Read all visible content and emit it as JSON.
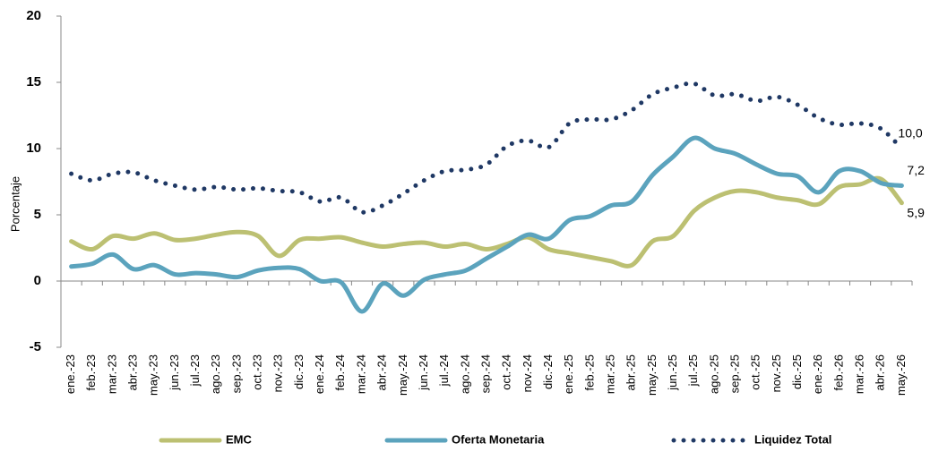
{
  "chart_data": {
    "type": "line",
    "y_label": "Porcentaje",
    "categories": [
      "ene.-23",
      "feb.-23",
      "mar.-23",
      "abr.-23",
      "may.-23",
      "jun.-23",
      "jul.-23",
      "ago.-23",
      "sep.-23",
      "oct.-23",
      "nov.-23",
      "dic.-23",
      "ene.-24",
      "feb.-24",
      "mar.-24",
      "abr.-24",
      "may.-24",
      "jun.-24",
      "jul.-24",
      "ago.-24",
      "sep.-24",
      "oct.-24",
      "nov.-24",
      "dic.-24",
      "ene.-25",
      "feb.-25",
      "mar.-25",
      "abr.-25",
      "may.-25",
      "jun.-25",
      "jul.-25",
      "ago.-25",
      "sep.-25",
      "oct.-25",
      "nov.-25",
      "dic.-25",
      "ene.-26",
      "feb.-26",
      "mar.-26",
      "abr.-26",
      "may.-26"
    ],
    "series": [
      {
        "name": "EMC",
        "color": "#bcc072",
        "style": "solid",
        "values": [
          3.0,
          2.4,
          3.4,
          3.2,
          3.6,
          3.1,
          3.2,
          3.5,
          3.7,
          3.4,
          1.9,
          3.1,
          3.2,
          3.3,
          2.9,
          2.6,
          2.8,
          2.9,
          2.6,
          2.8,
          2.4,
          2.8,
          3.3,
          2.4,
          2.1,
          1.8,
          1.5,
          1.2,
          3.0,
          3.4,
          5.3,
          6.3,
          6.8,
          6.7,
          6.3,
          6.1,
          5.8,
          7.1,
          7.3,
          7.7,
          5.9
        ],
        "value_labels": [
          null,
          null,
          null,
          null,
          null,
          null,
          null,
          null,
          null,
          null,
          null,
          null,
          null,
          null,
          null,
          null,
          null,
          null,
          null,
          null,
          null,
          null,
          null,
          null,
          null,
          null,
          null,
          null,
          null,
          null,
          null,
          null,
          null,
          null,
          null,
          null,
          null,
          null,
          null,
          null,
          "5,9"
        ]
      },
      {
        "name": "Oferta Monetaria",
        "color": "#5ba3bd",
        "style": "solid",
        "values": [
          1.1,
          1.3,
          2.0,
          0.9,
          1.2,
          0.5,
          0.6,
          0.5,
          0.3,
          0.8,
          1.0,
          0.9,
          0.0,
          -0.1,
          -2.3,
          -0.2,
          -1.1,
          0.1,
          0.5,
          0.8,
          1.7,
          2.6,
          3.5,
          3.2,
          4.6,
          4.9,
          5.7,
          6.0,
          8.0,
          9.4,
          10.8,
          10.0,
          9.6,
          8.8,
          8.1,
          7.9,
          6.7,
          8.3,
          8.3,
          7.4,
          7.2
        ],
        "value_labels": [
          null,
          null,
          null,
          null,
          null,
          null,
          null,
          null,
          null,
          null,
          null,
          null,
          null,
          null,
          null,
          null,
          null,
          null,
          null,
          null,
          null,
          null,
          null,
          null,
          null,
          null,
          null,
          null,
          null,
          null,
          null,
          null,
          null,
          null,
          null,
          null,
          null,
          null,
          null,
          null,
          "7,2"
        ]
      },
      {
        "name": "Liquidez Total",
        "color": "#1f3864",
        "style": "dotted",
        "values": [
          8.1,
          7.6,
          8.1,
          8.2,
          7.6,
          7.2,
          6.9,
          7.1,
          6.9,
          7.0,
          6.8,
          6.7,
          6.0,
          6.3,
          5.2,
          5.7,
          6.6,
          7.6,
          8.3,
          8.4,
          8.8,
          10.2,
          10.6,
          10.1,
          11.9,
          12.2,
          12.2,
          12.9,
          14.1,
          14.6,
          14.9,
          14.0,
          14.1,
          13.6,
          13.9,
          13.3,
          12.3,
          11.8,
          11.9,
          11.5,
          10.0
        ],
        "value_labels": [
          null,
          null,
          null,
          null,
          null,
          null,
          null,
          null,
          null,
          null,
          null,
          null,
          null,
          null,
          null,
          null,
          null,
          null,
          null,
          null,
          null,
          null,
          null,
          null,
          null,
          null,
          null,
          null,
          null,
          null,
          null,
          null,
          null,
          null,
          null,
          null,
          null,
          null,
          null,
          null,
          "10,0"
        ]
      }
    ],
    "ylim": [
      -5,
      20
    ],
    "yticks": [
      -5,
      0,
      5,
      10,
      15,
      20
    ],
    "grid": false
  }
}
